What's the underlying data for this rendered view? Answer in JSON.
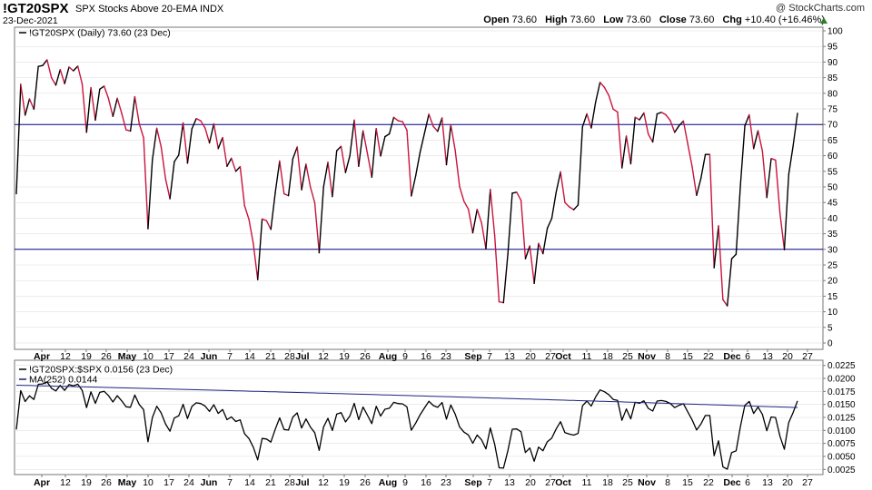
{
  "header": {
    "symbol": "!GT20SPX",
    "name": "SPX Stocks Above 20-EMA  INDX",
    "date": "23-Dec-2021",
    "copyright": "@ StockCharts.com",
    "open_label": "Open",
    "open": "73.60",
    "high_label": "High",
    "high": "73.60",
    "low_label": "Low",
    "low": "73.60",
    "close_label": "Close",
    "close": "73.60",
    "chg_label": "Chg",
    "chg": "+10.40 (+16.46%)",
    "chg_icon": "up-triangle-icon"
  },
  "colors": {
    "up": "#000000",
    "down": "#c8143c",
    "ref": "#000080",
    "ma": "#1a237e",
    "grid": "#d9d9d9"
  },
  "chart_data": [
    {
      "type": "line",
      "legend": "!GT20SPX (Daily) 73.60 (23 Dec)",
      "ylim": [
        0,
        100
      ],
      "y_ticks": [
        0,
        5,
        10,
        15,
        20,
        25,
        30,
        35,
        40,
        45,
        50,
        55,
        60,
        65,
        70,
        75,
        80,
        85,
        90,
        95,
        100
      ],
      "reference_lines": [
        30,
        70
      ],
      "x_tick_labels": [
        "Apr",
        "12",
        "19",
        "26",
        "May",
        "10",
        "17",
        "24",
        "Jun",
        "7",
        "14",
        "21",
        "28",
        "Jul",
        "12",
        "19",
        "26",
        "Aug",
        "9",
        "16",
        "23",
        "Sep",
        "7",
        "13",
        "20",
        "27",
        "Oct",
        "11",
        "18",
        "25",
        "Nov",
        "8",
        "15",
        "22",
        "Dec",
        "6",
        "13",
        "20",
        "27"
      ],
      "values": [
        47.8,
        82.9,
        73.0,
        78.2,
        74.9,
        88.6,
        88.9,
        90.7,
        85.0,
        82.6,
        87.6,
        83.1,
        88.4,
        87.2,
        88.7,
        83.0,
        67.5,
        81.8,
        71.4,
        81.3,
        82.3,
        78.3,
        72.6,
        78.4,
        73.6,
        68.3,
        67.9,
        78.9,
        70.3,
        65.7,
        36.6,
        58.7,
        68.8,
        62.8,
        52.6,
        46.2,
        58.1,
        60.2,
        70.5,
        57.6,
        68.6,
        71.9,
        71.2,
        68.9,
        64.1,
        70.2,
        62.3,
        65.8,
        56.6,
        59.2,
        55.0,
        56.5,
        44.0,
        39.6,
        31.8,
        20.3,
        39.7,
        39.2,
        36.4,
        48.2,
        58.3,
        47.8,
        47.2,
        59.0,
        62.8,
        49.1,
        57.3,
        50.0,
        44.9,
        28.9,
        50.0,
        57.9,
        46.9,
        61.6,
        63.0,
        54.6,
        60.0,
        71.4,
        56.6,
        68.0,
        60.7,
        53.1,
        68.7,
        59.9,
        66.1,
        67.0,
        72.3,
        71.2,
        70.9,
        68.2,
        47.1,
        53.6,
        61.1,
        67.2,
        73.3,
        69.4,
        67.8,
        72.1,
        57.1,
        69.9,
        61.7,
        50.1,
        45.4,
        42.9,
        35.3,
        42.8,
        38.5,
        30.2,
        49.2,
        34.4,
        13.2,
        12.9,
        28.5,
        48.0,
        48.3,
        45.7,
        27.0,
        31.1,
        19.1,
        31.9,
        28.6,
        36.8,
        39.9,
        48.3,
        54.8,
        45.0,
        43.6,
        42.7,
        44.2,
        69.2,
        73.4,
        68.9,
        77.2,
        83.5,
        81.9,
        79.3,
        74.9,
        74.0,
        56.1,
        66.3,
        57.4,
        72.3,
        71.5,
        73.7,
        66.9,
        64.4,
        73.4,
        73.9,
        73.1,
        71.3,
        67.5,
        69.6,
        71.1,
        63.7,
        56.4,
        47.3,
        52.8,
        60.4,
        60.4,
        24.1,
        37.5,
        13.9,
        11.9,
        27.0,
        28.4,
        50.7,
        69.6,
        73.1,
        62.3,
        68.0,
        61.5,
        46.6,
        59.1,
        58.6,
        41.6,
        29.9,
        54.0,
        63.2,
        73.6
      ]
    },
    {
      "type": "line",
      "legend": "!GT20SPX:$SPX 0.0156 (23 Dec)",
      "ma_legend": "MA(252) 0.0144",
      "ylim": [
        0.0015,
        0.0235
      ],
      "y_ticks": [
        0.0025,
        0.005,
        0.0075,
        0.01,
        0.0125,
        0.015,
        0.0175,
        0.02,
        0.0225
      ],
      "y_tick_labels": [
        "0.0025",
        "0.0050",
        "0.0075",
        "0.0100",
        "0.0125",
        "0.0150",
        "0.0175",
        "0.0200",
        "0.0225"
      ],
      "x_tick_labels": [
        "Apr",
        "12",
        "19",
        "26",
        "May",
        "10",
        "17",
        "24",
        "Jun",
        "7",
        "14",
        "21",
        "28",
        "Jul",
        "12",
        "19",
        "26",
        "Aug",
        "9",
        "16",
        "23",
        "Sep",
        "7",
        "13",
        "20",
        "27",
        "Oct",
        "11",
        "18",
        "25",
        "Nov",
        "8",
        "15",
        "22",
        "Dec",
        "6",
        "13",
        "20",
        "27"
      ],
      "series": [
        {
          "name": "!GT20SPX:$SPX",
          "from_panel_values": true,
          "scale": 0.000213
        },
        {
          "name": "MA(252)",
          "start": 0.0187,
          "end": 0.0144
        }
      ]
    }
  ]
}
